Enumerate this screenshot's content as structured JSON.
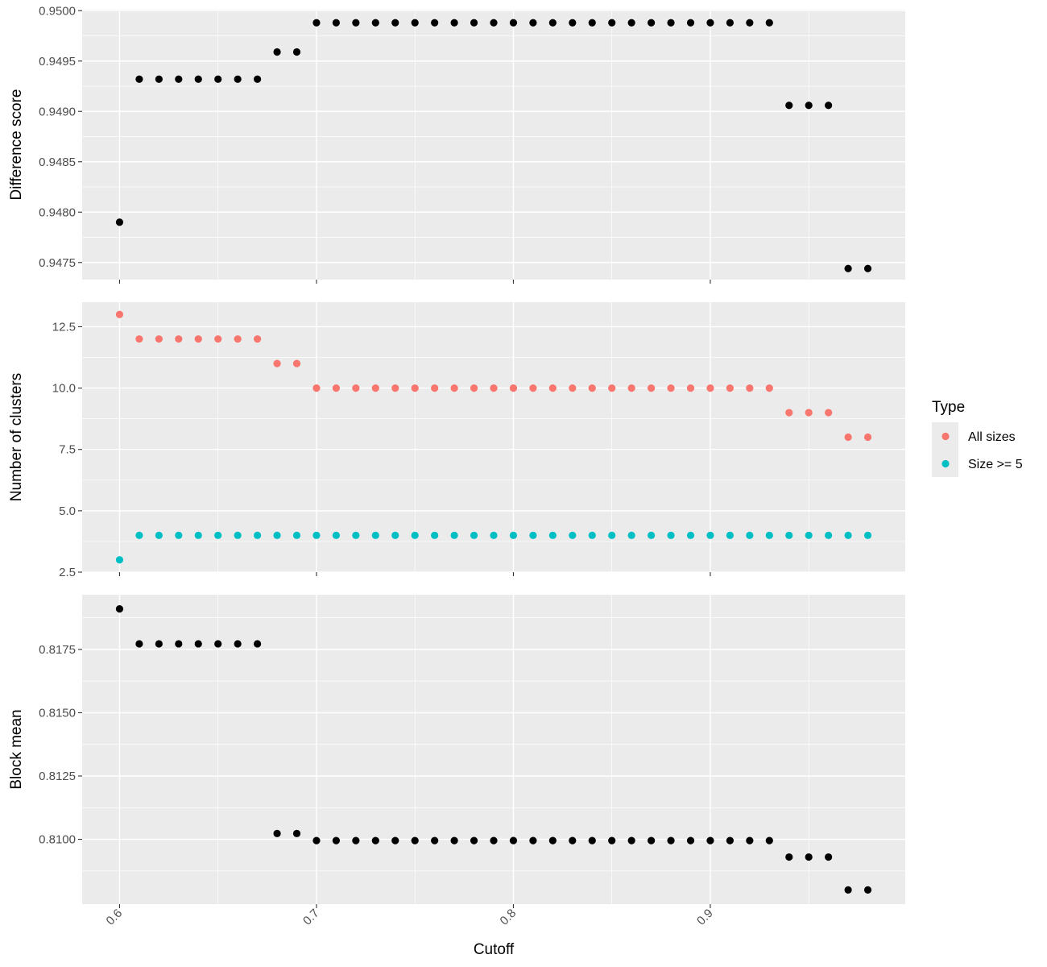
{
  "chart_data": {
    "type": "scatter",
    "xlabel": "Cutoff",
    "x_ticks": [
      "0.6",
      "0.7",
      "0.8",
      "0.9"
    ],
    "x_tick_values": [
      0.6,
      0.7,
      0.8,
      0.9
    ],
    "xlim": [
      0.581,
      0.999
    ],
    "x": [
      0.6,
      0.61,
      0.62,
      0.63,
      0.64,
      0.65,
      0.66,
      0.67,
      0.68,
      0.69,
      0.7,
      0.71,
      0.72,
      0.73,
      0.74,
      0.75,
      0.76,
      0.77,
      0.78,
      0.79,
      0.8,
      0.81,
      0.82,
      0.83,
      0.84,
      0.85,
      0.86,
      0.87,
      0.88,
      0.89,
      0.9,
      0.91,
      0.92,
      0.93,
      0.94,
      0.95,
      0.96,
      0.97,
      0.98
    ],
    "grid": true,
    "legend_position": "right",
    "panels": [
      {
        "ylabel": "Difference score",
        "ylim": [
          0.94733,
          0.95001
        ],
        "y_ticks": [
          "0.9475",
          "0.9480",
          "0.9485",
          "0.9490",
          "0.9495",
          "0.9500"
        ],
        "y_tick_values": [
          0.9475,
          0.948,
          0.9485,
          0.949,
          0.9495,
          0.95
        ],
        "show_x_tick_labels": false,
        "series": [
          {
            "color": "#000000",
            "values": [
              0.9479,
              0.94932,
              0.94932,
              0.94932,
              0.94932,
              0.94932,
              0.94932,
              0.94932,
              0.94959,
              0.94959,
              0.94988,
              0.94988,
              0.94988,
              0.94988,
              0.94988,
              0.94988,
              0.94988,
              0.94988,
              0.94988,
              0.94988,
              0.94988,
              0.94988,
              0.94988,
              0.94988,
              0.94988,
              0.94988,
              0.94988,
              0.94988,
              0.94988,
              0.94988,
              0.94988,
              0.94988,
              0.94988,
              0.94988,
              0.94906,
              0.94906,
              0.94906,
              0.94744,
              0.94744
            ]
          }
        ]
      },
      {
        "ylabel": "Number of clusters",
        "ylim": [
          2.5,
          13.5
        ],
        "y_ticks": [
          "2.5",
          "5.0",
          "7.5",
          "10.0",
          "12.5"
        ],
        "y_tick_values": [
          2.5,
          5.0,
          7.5,
          10.0,
          12.5
        ],
        "show_x_tick_labels": false,
        "series": [
          {
            "name": "All sizes",
            "color": "#F8766D",
            "values": [
              13,
              12,
              12,
              12,
              12,
              12,
              12,
              12,
              11,
              11,
              10,
              10,
              10,
              10,
              10,
              10,
              10,
              10,
              10,
              10,
              10,
              10,
              10,
              10,
              10,
              10,
              10,
              10,
              10,
              10,
              10,
              10,
              10,
              10,
              9,
              9,
              9,
              8,
              8
            ]
          },
          {
            "name": "Size >= 5",
            "color": "#00BFC4",
            "values": [
              3,
              4,
              4,
              4,
              4,
              4,
              4,
              4,
              4,
              4,
              4,
              4,
              4,
              4,
              4,
              4,
              4,
              4,
              4,
              4,
              4,
              4,
              4,
              4,
              4,
              4,
              4,
              4,
              4,
              4,
              4,
              4,
              4,
              4,
              4,
              4,
              4,
              4,
              4
            ]
          }
        ]
      },
      {
        "ylabel": "Block mean",
        "ylim": [
          0.80744,
          0.81966
        ],
        "y_ticks": [
          "0.8100",
          "0.8125",
          "0.8150",
          "0.8175"
        ],
        "y_tick_values": [
          0.81,
          0.8125,
          0.815,
          0.8175
        ],
        "show_x_tick_labels": true,
        "series": [
          {
            "color": "#000000",
            "values": [
              0.8191,
              0.81772,
              0.81772,
              0.81772,
              0.81772,
              0.81772,
              0.81772,
              0.81772,
              0.81023,
              0.81023,
              0.80995,
              0.80995,
              0.80995,
              0.80995,
              0.80995,
              0.80995,
              0.80995,
              0.80995,
              0.80995,
              0.80995,
              0.80995,
              0.80995,
              0.80995,
              0.80995,
              0.80995,
              0.80995,
              0.80995,
              0.80995,
              0.80995,
              0.80995,
              0.80995,
              0.80995,
              0.80995,
              0.80995,
              0.8093,
              0.8093,
              0.8093,
              0.808,
              0.808
            ]
          }
        ]
      }
    ],
    "legend": {
      "title": "Type",
      "items": [
        {
          "label": "All sizes",
          "color": "#F8766D"
        },
        {
          "label": "Size >= 5",
          "color": "#00BFC4"
        }
      ]
    }
  }
}
